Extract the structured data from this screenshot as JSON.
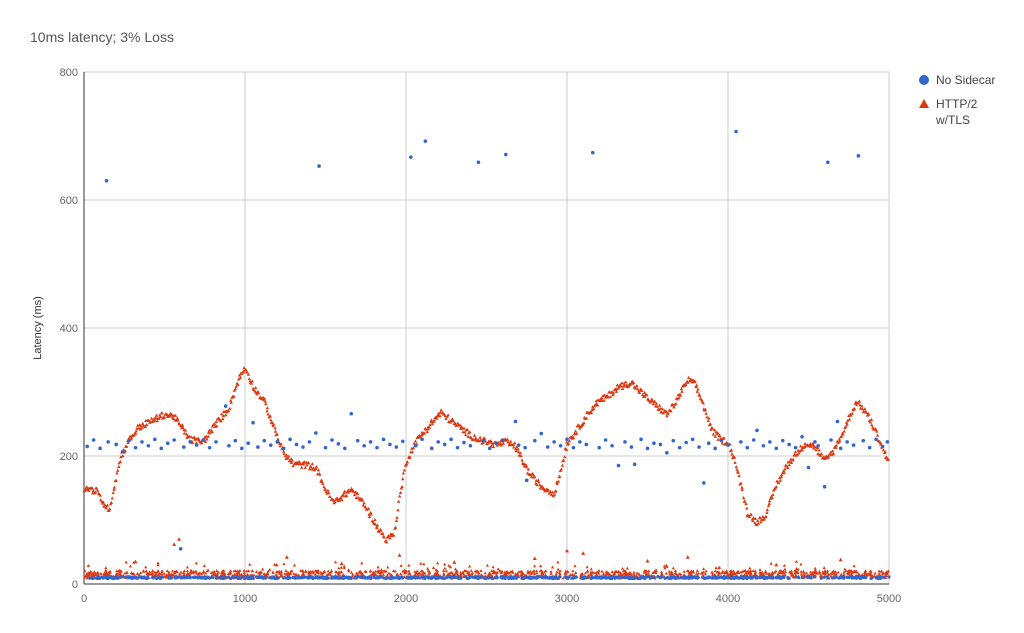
{
  "chart_data": {
    "type": "scatter",
    "title": "10ms latency; 3% Loss",
    "xlabel": "",
    "ylabel": "Latency (ms)",
    "xlim": [
      0,
      5000
    ],
    "ylim": [
      0,
      800
    ],
    "xticks": [
      "0",
      "1000",
      "2000",
      "3000",
      "4000",
      "5000"
    ],
    "yticks": [
      "0",
      "200",
      "400",
      "600",
      "800"
    ],
    "grid": true,
    "legend_position": "right",
    "series": [
      {
        "name": "No Sidecar",
        "marker": "circle",
        "color": "#3366cc",
        "baseline_value": 10,
        "points": [
          [
            140,
            630
          ],
          [
            1460,
            653
          ],
          [
            2030,
            667
          ],
          [
            2120,
            692
          ],
          [
            2450,
            659
          ],
          [
            2620,
            671
          ],
          [
            3160,
            674
          ],
          [
            4050,
            707
          ],
          [
            4620,
            659
          ],
          [
            4810,
            669
          ],
          [
            880,
            278
          ],
          [
            1050,
            252
          ],
          [
            1660,
            266
          ],
          [
            2680,
            254
          ],
          [
            4180,
            240
          ],
          [
            4680,
            254
          ],
          [
            600,
            55
          ],
          [
            4600,
            152
          ],
          [
            2750,
            162
          ],
          [
            3320,
            185
          ],
          [
            3420,
            187
          ],
          [
            3850,
            158
          ],
          [
            20,
            215
          ],
          [
            60,
            225
          ],
          [
            100,
            212
          ],
          [
            150,
            222
          ],
          [
            200,
            218
          ],
          [
            240,
            207
          ],
          [
            280,
            224
          ],
          [
            320,
            213
          ],
          [
            360,
            222
          ],
          [
            400,
            216
          ],
          [
            440,
            226
          ],
          [
            480,
            212
          ],
          [
            520,
            220
          ],
          [
            560,
            225
          ],
          [
            620,
            214
          ],
          [
            660,
            222
          ],
          [
            700,
            217
          ],
          [
            740,
            225
          ],
          [
            780,
            213
          ],
          [
            820,
            222
          ],
          [
            900,
            216
          ],
          [
            940,
            224
          ],
          [
            980,
            212
          ],
          [
            1020,
            220
          ],
          [
            1080,
            214
          ],
          [
            1120,
            224
          ],
          [
            1160,
            217
          ],
          [
            1200,
            222
          ],
          [
            1240,
            212
          ],
          [
            1280,
            226
          ],
          [
            1320,
            218
          ],
          [
            1360,
            214
          ],
          [
            1400,
            222
          ],
          [
            1440,
            236
          ],
          [
            1500,
            213
          ],
          [
            1540,
            225
          ],
          [
            1580,
            219
          ],
          [
            1620,
            212
          ],
          [
            1700,
            224
          ],
          [
            1740,
            216
          ],
          [
            1780,
            222
          ],
          [
            1820,
            213
          ],
          [
            1860,
            226
          ],
          [
            1900,
            218
          ],
          [
            1940,
            214
          ],
          [
            1980,
            223
          ],
          [
            2060,
            216
          ],
          [
            2100,
            226
          ],
          [
            2160,
            212
          ],
          [
            2200,
            222
          ],
          [
            2240,
            218
          ],
          [
            2280,
            226
          ],
          [
            2320,
            213
          ],
          [
            2360,
            221
          ],
          [
            2400,
            216
          ],
          [
            2480,
            224
          ],
          [
            2520,
            212
          ],
          [
            2560,
            220
          ],
          [
            2600,
            225
          ],
          [
            2700,
            217
          ],
          [
            2740,
            213
          ],
          [
            2800,
            224
          ],
          [
            2840,
            235
          ],
          [
            2880,
            214
          ],
          [
            2920,
            222
          ],
          [
            2960,
            216
          ],
          [
            3000,
            226
          ],
          [
            3040,
            213
          ],
          [
            3080,
            222
          ],
          [
            3120,
            218
          ],
          [
            3200,
            213
          ],
          [
            3240,
            225
          ],
          [
            3280,
            216
          ],
          [
            3360,
            222
          ],
          [
            3400,
            214
          ],
          [
            3460,
            226
          ],
          [
            3500,
            212
          ],
          [
            3540,
            220
          ],
          [
            3580,
            218
          ],
          [
            3620,
            205
          ],
          [
            3660,
            224
          ],
          [
            3700,
            213
          ],
          [
            3740,
            221
          ],
          [
            3780,
            226
          ],
          [
            3820,
            214
          ],
          [
            3880,
            220
          ],
          [
            3920,
            212
          ],
          [
            3960,
            224
          ],
          [
            4000,
            217
          ],
          [
            4080,
            222
          ],
          [
            4120,
            213
          ],
          [
            4160,
            225
          ],
          [
            4220,
            216
          ],
          [
            4260,
            222
          ],
          [
            4300,
            212
          ],
          [
            4340,
            224
          ],
          [
            4380,
            218
          ],
          [
            4420,
            213
          ],
          [
            4460,
            230
          ],
          [
            4500,
            182
          ],
          [
            4540,
            222
          ],
          [
            4560,
            216
          ],
          [
            4640,
            225
          ],
          [
            4700,
            212
          ],
          [
            4740,
            222
          ],
          [
            4780,
            217
          ],
          [
            4840,
            224
          ],
          [
            4880,
            213
          ],
          [
            4920,
            226
          ],
          [
            4960,
            215
          ],
          [
            4990,
            222
          ]
        ]
      },
      {
        "name": "HTTP/2 w/TLS",
        "marker": "triangle",
        "color": "#dc3912",
        "baseline_value": 15,
        "trend": [
          [
            0,
            150
          ],
          [
            80,
            145
          ],
          [
            140,
            118
          ],
          [
            160,
            120
          ],
          [
            230,
            200
          ],
          [
            280,
            225
          ],
          [
            340,
            245
          ],
          [
            420,
            255
          ],
          [
            500,
            265
          ],
          [
            560,
            262
          ],
          [
            620,
            240
          ],
          [
            660,
            226
          ],
          [
            740,
            222
          ],
          [
            820,
            250
          ],
          [
            900,
            275
          ],
          [
            960,
            320
          ],
          [
            1000,
            338
          ],
          [
            1060,
            305
          ],
          [
            1120,
            285
          ],
          [
            1180,
            245
          ],
          [
            1240,
            205
          ],
          [
            1300,
            188
          ],
          [
            1380,
            186
          ],
          [
            1440,
            182
          ],
          [
            1500,
            148
          ],
          [
            1550,
            127
          ],
          [
            1620,
            140
          ],
          [
            1660,
            148
          ],
          [
            1740,
            125
          ],
          [
            1820,
            90
          ],
          [
            1880,
            68
          ],
          [
            1930,
            82
          ],
          [
            1960,
            135
          ],
          [
            2000,
            190
          ],
          [
            2060,
            222
          ],
          [
            2120,
            240
          ],
          [
            2180,
            258
          ],
          [
            2220,
            268
          ],
          [
            2280,
            255
          ],
          [
            2360,
            240
          ],
          [
            2400,
            232
          ],
          [
            2460,
            225
          ],
          [
            2560,
            218
          ],
          [
            2620,
            222
          ],
          [
            2680,
            215
          ],
          [
            2760,
            175
          ],
          [
            2840,
            152
          ],
          [
            2920,
            142
          ],
          [
            2960,
            175
          ],
          [
            3000,
            220
          ],
          [
            3060,
            240
          ],
          [
            3120,
            262
          ],
          [
            3180,
            282
          ],
          [
            3260,
            295
          ],
          [
            3320,
            308
          ],
          [
            3400,
            315
          ],
          [
            3440,
            305
          ],
          [
            3500,
            290
          ],
          [
            3560,
            278
          ],
          [
            3620,
            265
          ],
          [
            3660,
            278
          ],
          [
            3720,
            305
          ],
          [
            3760,
            320
          ],
          [
            3800,
            310
          ],
          [
            3840,
            285
          ],
          [
            3900,
            240
          ],
          [
            3960,
            225
          ],
          [
            4000,
            222
          ],
          [
            4040,
            195
          ],
          [
            4080,
            155
          ],
          [
            4120,
            112
          ],
          [
            4180,
            96
          ],
          [
            4240,
            110
          ],
          [
            4300,
            155
          ],
          [
            4380,
            190
          ],
          [
            4440,
            208
          ],
          [
            4480,
            220
          ],
          [
            4540,
            215
          ],
          [
            4600,
            192
          ],
          [
            4660,
            210
          ],
          [
            4720,
            240
          ],
          [
            4760,
            265
          ],
          [
            4800,
            285
          ],
          [
            4860,
            268
          ],
          [
            4920,
            238
          ],
          [
            4980,
            200
          ],
          [
            5000,
            192
          ]
        ],
        "points": [
          [
            560,
            62
          ],
          [
            590,
            70
          ],
          [
            1260,
            42
          ],
          [
            1960,
            45
          ],
          [
            3000,
            52
          ],
          [
            3100,
            48
          ],
          [
            3750,
            42
          ],
          [
            4700,
            38
          ],
          [
            2800,
            40
          ],
          [
            320,
            35
          ],
          [
            1600,
            32
          ],
          [
            2300,
            34
          ],
          [
            3500,
            36
          ],
          [
            4300,
            30
          ]
        ]
      }
    ]
  }
}
